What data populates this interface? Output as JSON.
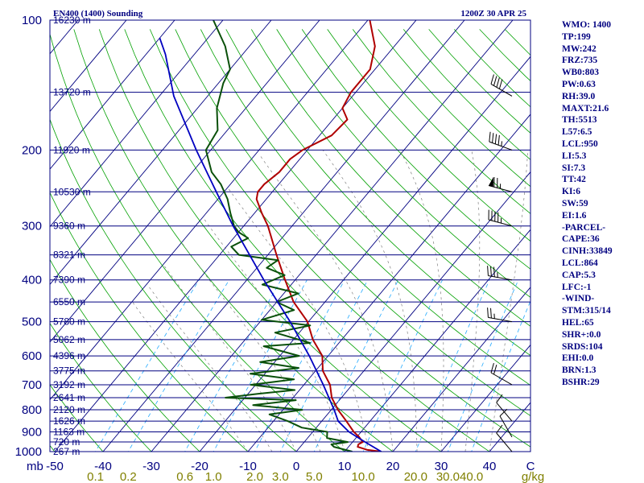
{
  "header": {
    "title": "EN400 (1400) Sounding",
    "time": "1200Z 30 APR 25"
  },
  "indices": [
    "WMO: 1400",
    "TP:199",
    "MW:242",
    "FRZ:735",
    "WB0:803",
    "PW:0.63",
    "RH:39.0",
    "MAXT:21.6",
    "TH:5513",
    "L57:6.5",
    "LCL:950",
    "LI:5.3",
    "SI:7.3",
    "TT:42",
    "KI:6",
    "SW:59",
    "EI:1.6",
    "-PARCEL-",
    "CAPE:36",
    "CINH:33849",
    "LCL:864",
    "CAP:5.3",
    "LFC:-1",
    "-WIND-",
    "STM:315/14",
    "HEL:65",
    "SHR+:0.0",
    "SRDS:104",
    "EHI:0.0",
    "BRN:1.3",
    "BSHR:29"
  ],
  "colors": {
    "isobar": "#000080",
    "isotherm": "#000080",
    "dry_adiabat": "#00a000",
    "mixing_ratio": "#22aaff",
    "moist_adiabat": "#808080",
    "temperature": "#b00000",
    "dewpoint": "#0a500a",
    "parcel": "#0000c0"
  },
  "chart_data": {
    "type": "line",
    "diagram": "skew-t log-p",
    "xlabel": "",
    "ylabel": "mb",
    "x_unit_label": "g/kg",
    "pressure_axis": {
      "ticks": [
        100,
        200,
        300,
        400,
        500,
        600,
        700,
        800,
        900,
        1000
      ],
      "ylim": [
        1000,
        100
      ],
      "log_scale": true
    },
    "temperature_axis": {
      "ticks": [
        -50,
        -40,
        -30,
        -20,
        -10,
        0,
        10,
        20,
        30,
        40
      ],
      "extra_label": "C"
    },
    "mixing_ratio_labels": [
      "0.1",
      "0.2",
      "0.6",
      "1.0",
      "2.0",
      "3.0",
      "5.0",
      "10.0",
      "20.0",
      "30.0",
      "40.0",
      "g/kg"
    ],
    "mixing_ratio_values": [
      0.1,
      0.2,
      0.6,
      1,
      2,
      3,
      5,
      10,
      20,
      30,
      40
    ],
    "height_labels": [
      {
        "p": 100,
        "text": "16230 m"
      },
      {
        "p": 147,
        "text": "13720 m"
      },
      {
        "p": 200,
        "text": "11920 m"
      },
      {
        "p": 250,
        "text": "10530 m"
      },
      {
        "p": 300,
        "text": "9360 m"
      },
      {
        "p": 350,
        "text": "8321 m"
      },
      {
        "p": 400,
        "text": "7390 m"
      },
      {
        "p": 450,
        "text": "6550 m"
      },
      {
        "p": 500,
        "text": "5780 m"
      },
      {
        "p": 550,
        "text": "5062 m"
      },
      {
        "p": 600,
        "text": "4396 m"
      },
      {
        "p": 650,
        "text": "3775 m"
      },
      {
        "p": 700,
        "text": "3192 m"
      },
      {
        "p": 750,
        "text": "2641 m"
      },
      {
        "p": 800,
        "text": "2120 m"
      },
      {
        "p": 850,
        "text": "1626 m"
      },
      {
        "p": 900,
        "text": "1163 m"
      },
      {
        "p": 950,
        "text": "720 m"
      },
      {
        "p": 1000,
        "text": "267 m"
      }
    ],
    "series": [
      {
        "key": "temperature",
        "points": [
          [
            1000,
            17.6
          ],
          [
            990,
            14.3
          ],
          [
            975,
            11.9
          ],
          [
            962,
            11.6
          ],
          [
            950,
            12.1
          ],
          [
            925,
            10.5
          ],
          [
            900,
            8.5
          ],
          [
            850,
            5.1
          ],
          [
            800,
            1.4
          ],
          [
            750,
            -2
          ],
          [
            700,
            -4.6
          ],
          [
            650,
            -8.5
          ],
          [
            600,
            -11.2
          ],
          [
            550,
            -16
          ],
          [
            500,
            -20.2
          ],
          [
            450,
            -26.5
          ],
          [
            400,
            -32.1
          ],
          [
            350,
            -38.2
          ],
          [
            300,
            -45
          ],
          [
            280,
            -48.5
          ],
          [
            260,
            -52
          ],
          [
            250,
            -53
          ],
          [
            240,
            -53
          ],
          [
            225,
            -52
          ],
          [
            210,
            -52
          ],
          [
            200,
            -51
          ],
          [
            185,
            -47.5
          ],
          [
            170,
            -47
          ],
          [
            160,
            -50
          ],
          [
            147,
            -51
          ],
          [
            130,
            -51
          ],
          [
            115,
            -54
          ],
          [
            100,
            -59.6
          ]
        ]
      },
      {
        "key": "dewpoint",
        "points": [
          [
            1000,
            11.6
          ],
          [
            975,
            7
          ],
          [
            962,
            6
          ],
          [
            950,
            9
          ],
          [
            930,
            4
          ],
          [
            900,
            3
          ],
          [
            880,
            -3
          ],
          [
            850,
            -7
          ],
          [
            820,
            -12
          ],
          [
            800,
            -6
          ],
          [
            780,
            -17
          ],
          [
            760,
            -9
          ],
          [
            750,
            -24
          ],
          [
            735,
            -18
          ],
          [
            720,
            -11
          ],
          [
            700,
            -21
          ],
          [
            680,
            -13
          ],
          [
            660,
            -23
          ],
          [
            640,
            -14
          ],
          [
            620,
            -23
          ],
          [
            600,
            -16
          ],
          [
            570,
            -25
          ],
          [
            560,
            -16
          ],
          [
            530,
            -25
          ],
          [
            510,
            -19
          ],
          [
            495,
            -30
          ],
          [
            470,
            -25
          ],
          [
            450,
            -30
          ],
          [
            430,
            -27
          ],
          [
            410,
            -36
          ],
          [
            390,
            -33
          ],
          [
            375,
            -38
          ],
          [
            360,
            -37
          ],
          [
            350,
            -46
          ],
          [
            335,
            -49
          ],
          [
            320,
            -47
          ],
          [
            310,
            -50
          ],
          [
            300,
            -52
          ],
          [
            280,
            -55
          ],
          [
            260,
            -58
          ],
          [
            240,
            -62
          ],
          [
            225,
            -66
          ],
          [
            200,
            -71
          ],
          [
            180,
            -72
          ],
          [
            160,
            -76
          ],
          [
            140,
            -79
          ],
          [
            130,
            -80
          ],
          [
            115,
            -85
          ],
          [
            100,
            -92
          ]
        ]
      },
      {
        "key": "parcel",
        "points": [
          [
            1000,
            17.6
          ],
          [
            950,
            12.6
          ],
          [
            900,
            7.5
          ],
          [
            850,
            3.4
          ],
          [
            800,
            0.6
          ],
          [
            700,
            -6
          ],
          [
            600,
            -13.9
          ],
          [
            500,
            -23.8
          ],
          [
            400,
            -36.5
          ],
          [
            300,
            -52.2
          ],
          [
            250,
            -61.6
          ],
          [
            200,
            -73
          ],
          [
            150,
            -87
          ],
          [
            120,
            -96
          ],
          [
            110,
            -100
          ]
        ]
      }
    ],
    "wind_barbs": [
      {
        "p": 150,
        "dir": 300,
        "kt": 40
      },
      {
        "p": 200,
        "dir": 290,
        "kt": 45
      },
      {
        "p": 250,
        "dir": 285,
        "kt": 75
      },
      {
        "p": 300,
        "dir": 285,
        "kt": 45
      },
      {
        "p": 400,
        "dir": 280,
        "kt": 35
      },
      {
        "p": 500,
        "dir": 280,
        "kt": 25
      },
      {
        "p": 700,
        "dir": 300,
        "kt": 20
      },
      {
        "p": 850,
        "dir": 320,
        "kt": 10
      },
      {
        "p": 925,
        "dir": 330,
        "kt": 10
      },
      {
        "p": 1000,
        "dir": 320,
        "kt": 10
      }
    ]
  }
}
